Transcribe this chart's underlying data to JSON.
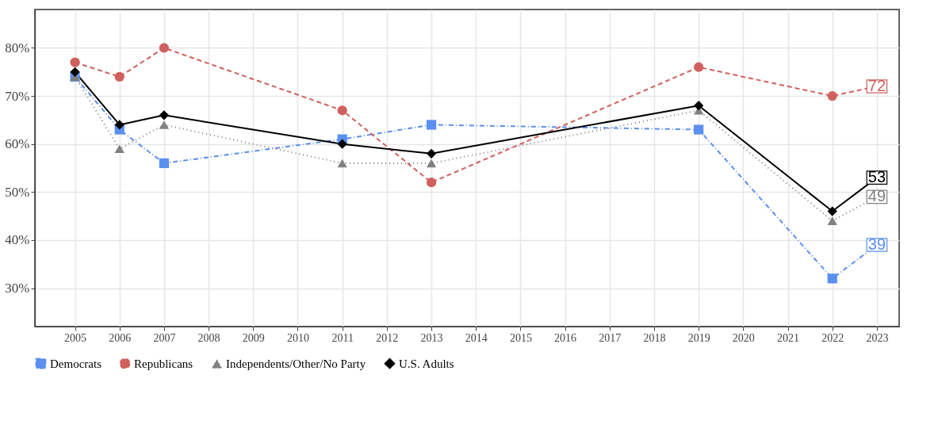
{
  "chart_data": {
    "type": "line",
    "x": [
      2005,
      2006,
      2007,
      2011,
      2013,
      2019,
      2022,
      2023
    ],
    "series": [
      {
        "name": "Democrats",
        "color": "#5b8ff0",
        "marker": "square",
        "line_style": "dashdot",
        "values": [
          74,
          63,
          56,
          61,
          64,
          63,
          32,
          39
        ],
        "value_labels": [
          null,
          null,
          null,
          null,
          null,
          null,
          null,
          "39"
        ]
      },
      {
        "name": "Republicans",
        "color": "#d0605e",
        "marker": "circle",
        "line_style": "dashed",
        "values": [
          77,
          74,
          80,
          67,
          52,
          76,
          70,
          72
        ],
        "value_labels": [
          null,
          null,
          null,
          null,
          null,
          null,
          null,
          "72"
        ]
      },
      {
        "name": "Independents/Other/No Party",
        "color": "#808080",
        "marker": "triangle",
        "line_style": "dotted",
        "values": [
          74,
          59,
          64,
          56,
          56,
          67,
          44,
          49
        ],
        "value_labels": [
          null,
          null,
          null,
          null,
          null,
          null,
          null,
          "49"
        ]
      },
      {
        "name": "U.S. Adults",
        "color": "#000000",
        "marker": "diamond",
        "line_style": "solid",
        "values": [
          75,
          64,
          66,
          60,
          58,
          68,
          46,
          53
        ],
        "value_labels": [
          null,
          null,
          null,
          null,
          null,
          null,
          null,
          "53"
        ]
      }
    ],
    "xlim": [
      2004.1,
      2023.5
    ],
    "xticks": [
      2005,
      2006,
      2007,
      2008,
      2009,
      2010,
      2011,
      2012,
      2013,
      2014,
      2015,
      2016,
      2017,
      2018,
      2019,
      2020,
      2021,
      2022,
      2023
    ],
    "ylim": [
      22,
      88
    ],
    "yticks": [
      {
        "value": 30,
        "label": "30%"
      },
      {
        "value": 40,
        "label": "40%"
      },
      {
        "value": 50,
        "label": "50%"
      },
      {
        "value": 60,
        "label": "60%"
      },
      {
        "value": 70,
        "label": "70%"
      },
      {
        "value": 80,
        "label": "80%"
      }
    ],
    "grid": true,
    "legend": "bottom"
  }
}
